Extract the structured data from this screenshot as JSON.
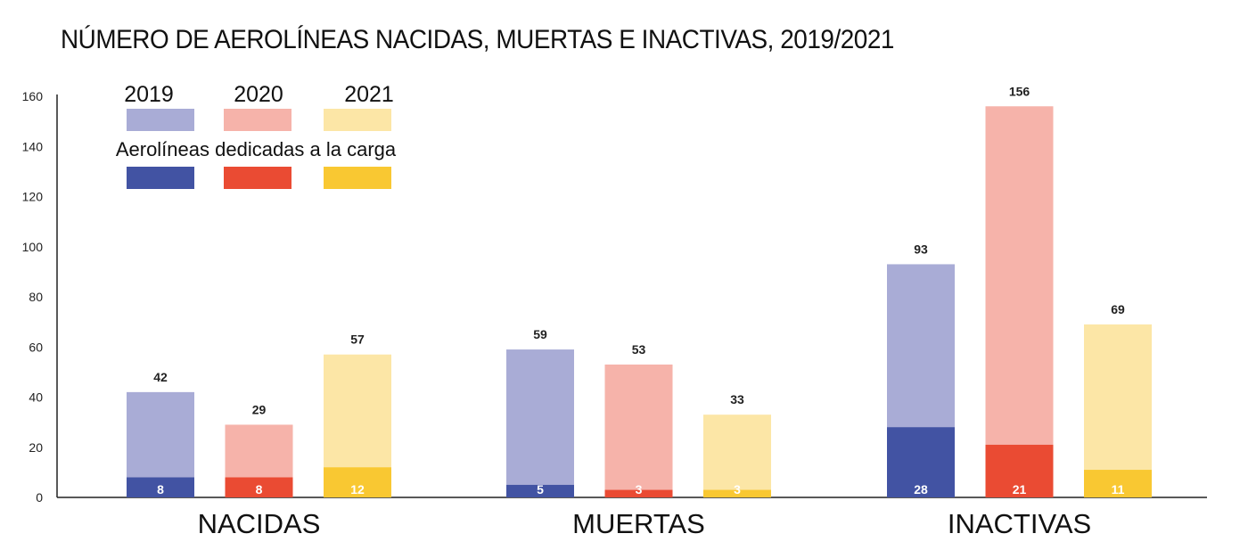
{
  "title": "NÚMERO DE AEROLÍNEAS NACIDAS, MUERTAS E INACTIVAS, 2019/2021",
  "legend": {
    "years": [
      "2019",
      "2020",
      "2021"
    ],
    "cargo_label": "Aerolíneas dedicadas a la carga"
  },
  "colors": {
    "total": [
      "#a9acd6",
      "#f6b3aa",
      "#fce6a6"
    ],
    "cargo": [
      "#4253a3",
      "#ea4b33",
      "#f9c832"
    ]
  },
  "chart_data": {
    "type": "bar",
    "title": "NÚMERO DE AEROLÍNEAS NACIDAS, MUERTAS E INACTIVAS, 2019/2021",
    "categories": [
      "NACIDAS",
      "MUERTAS",
      "INACTIVAS"
    ],
    "series": [
      {
        "name": "2019",
        "values": [
          42,
          59,
          93
        ],
        "cargo": [
          8,
          5,
          28
        ]
      },
      {
        "name": "2020",
        "values": [
          29,
          53,
          156
        ],
        "cargo": [
          8,
          3,
          21
        ]
      },
      {
        "name": "2021",
        "values": [
          57,
          33,
          69
        ],
        "cargo": [
          12,
          3,
          11
        ]
      }
    ],
    "cargo_series_label": "Aerolíneas dedicadas a la carga",
    "ylim": [
      0,
      160
    ],
    "yticks": [
      0,
      20,
      40,
      60,
      80,
      100,
      120,
      140,
      160
    ],
    "xlabel": "",
    "ylabel": "",
    "grid": false,
    "legend_position": "top-left"
  }
}
